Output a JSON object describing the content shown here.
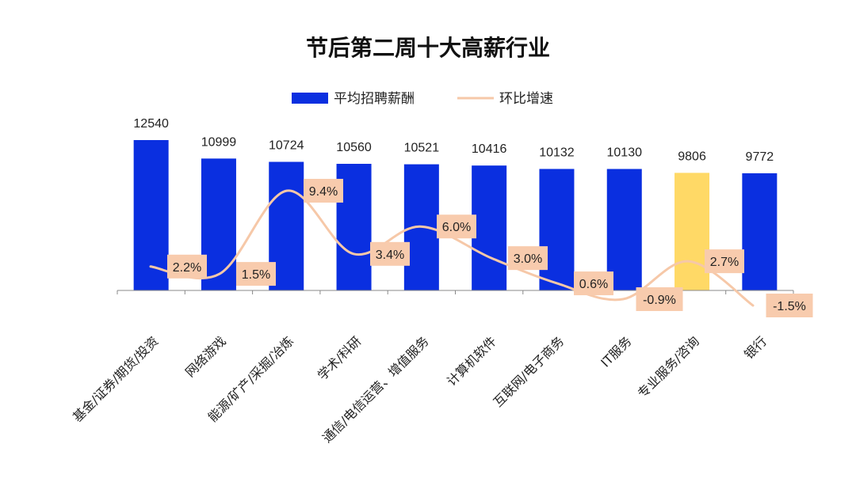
{
  "chart_data": {
    "type": "bar",
    "title": "节后第二周十大高薪行业",
    "categories": [
      "基金/证券/期货/投资",
      "网络游戏",
      "能源/矿产/采掘/冶炼",
      "学术/科研",
      "通信/电信运营、增值服务",
      "计算机软件",
      "互联网/电子商务",
      "IT服务",
      "专业服务/咨询",
      "银行"
    ],
    "series": [
      {
        "name": "平均招聘薪酬",
        "type": "bar",
        "values": [
          12540,
          10999,
          10724,
          10560,
          10521,
          10416,
          10132,
          10130,
          9806,
          9772
        ],
        "labels": [
          "12540",
          "10999",
          "10724",
          "10560",
          "10521",
          "10416",
          "10132",
          "10130",
          "9806",
          "9772"
        ]
      },
      {
        "name": "环比增速",
        "type": "line",
        "values": [
          2.2,
          1.5,
          9.4,
          3.4,
          6.0,
          3.0,
          0.6,
          -0.9,
          2.7,
          -1.5
        ],
        "labels": [
          "2.2%",
          "1.5%",
          "9.4%",
          "3.4%",
          "6.0%",
          "3.0%",
          "0.6%",
          "-0.9%",
          "2.7%",
          "-1.5%"
        ]
      }
    ],
    "highlight_index": 8,
    "legend_position": "top-center",
    "grid": false,
    "colors": {
      "bar": "#0a2fe0",
      "bar_highlight": "#ffd966",
      "line": "#f6c8a8",
      "rate_label_bg": "#f8cbad",
      "axis": "#888888"
    }
  }
}
